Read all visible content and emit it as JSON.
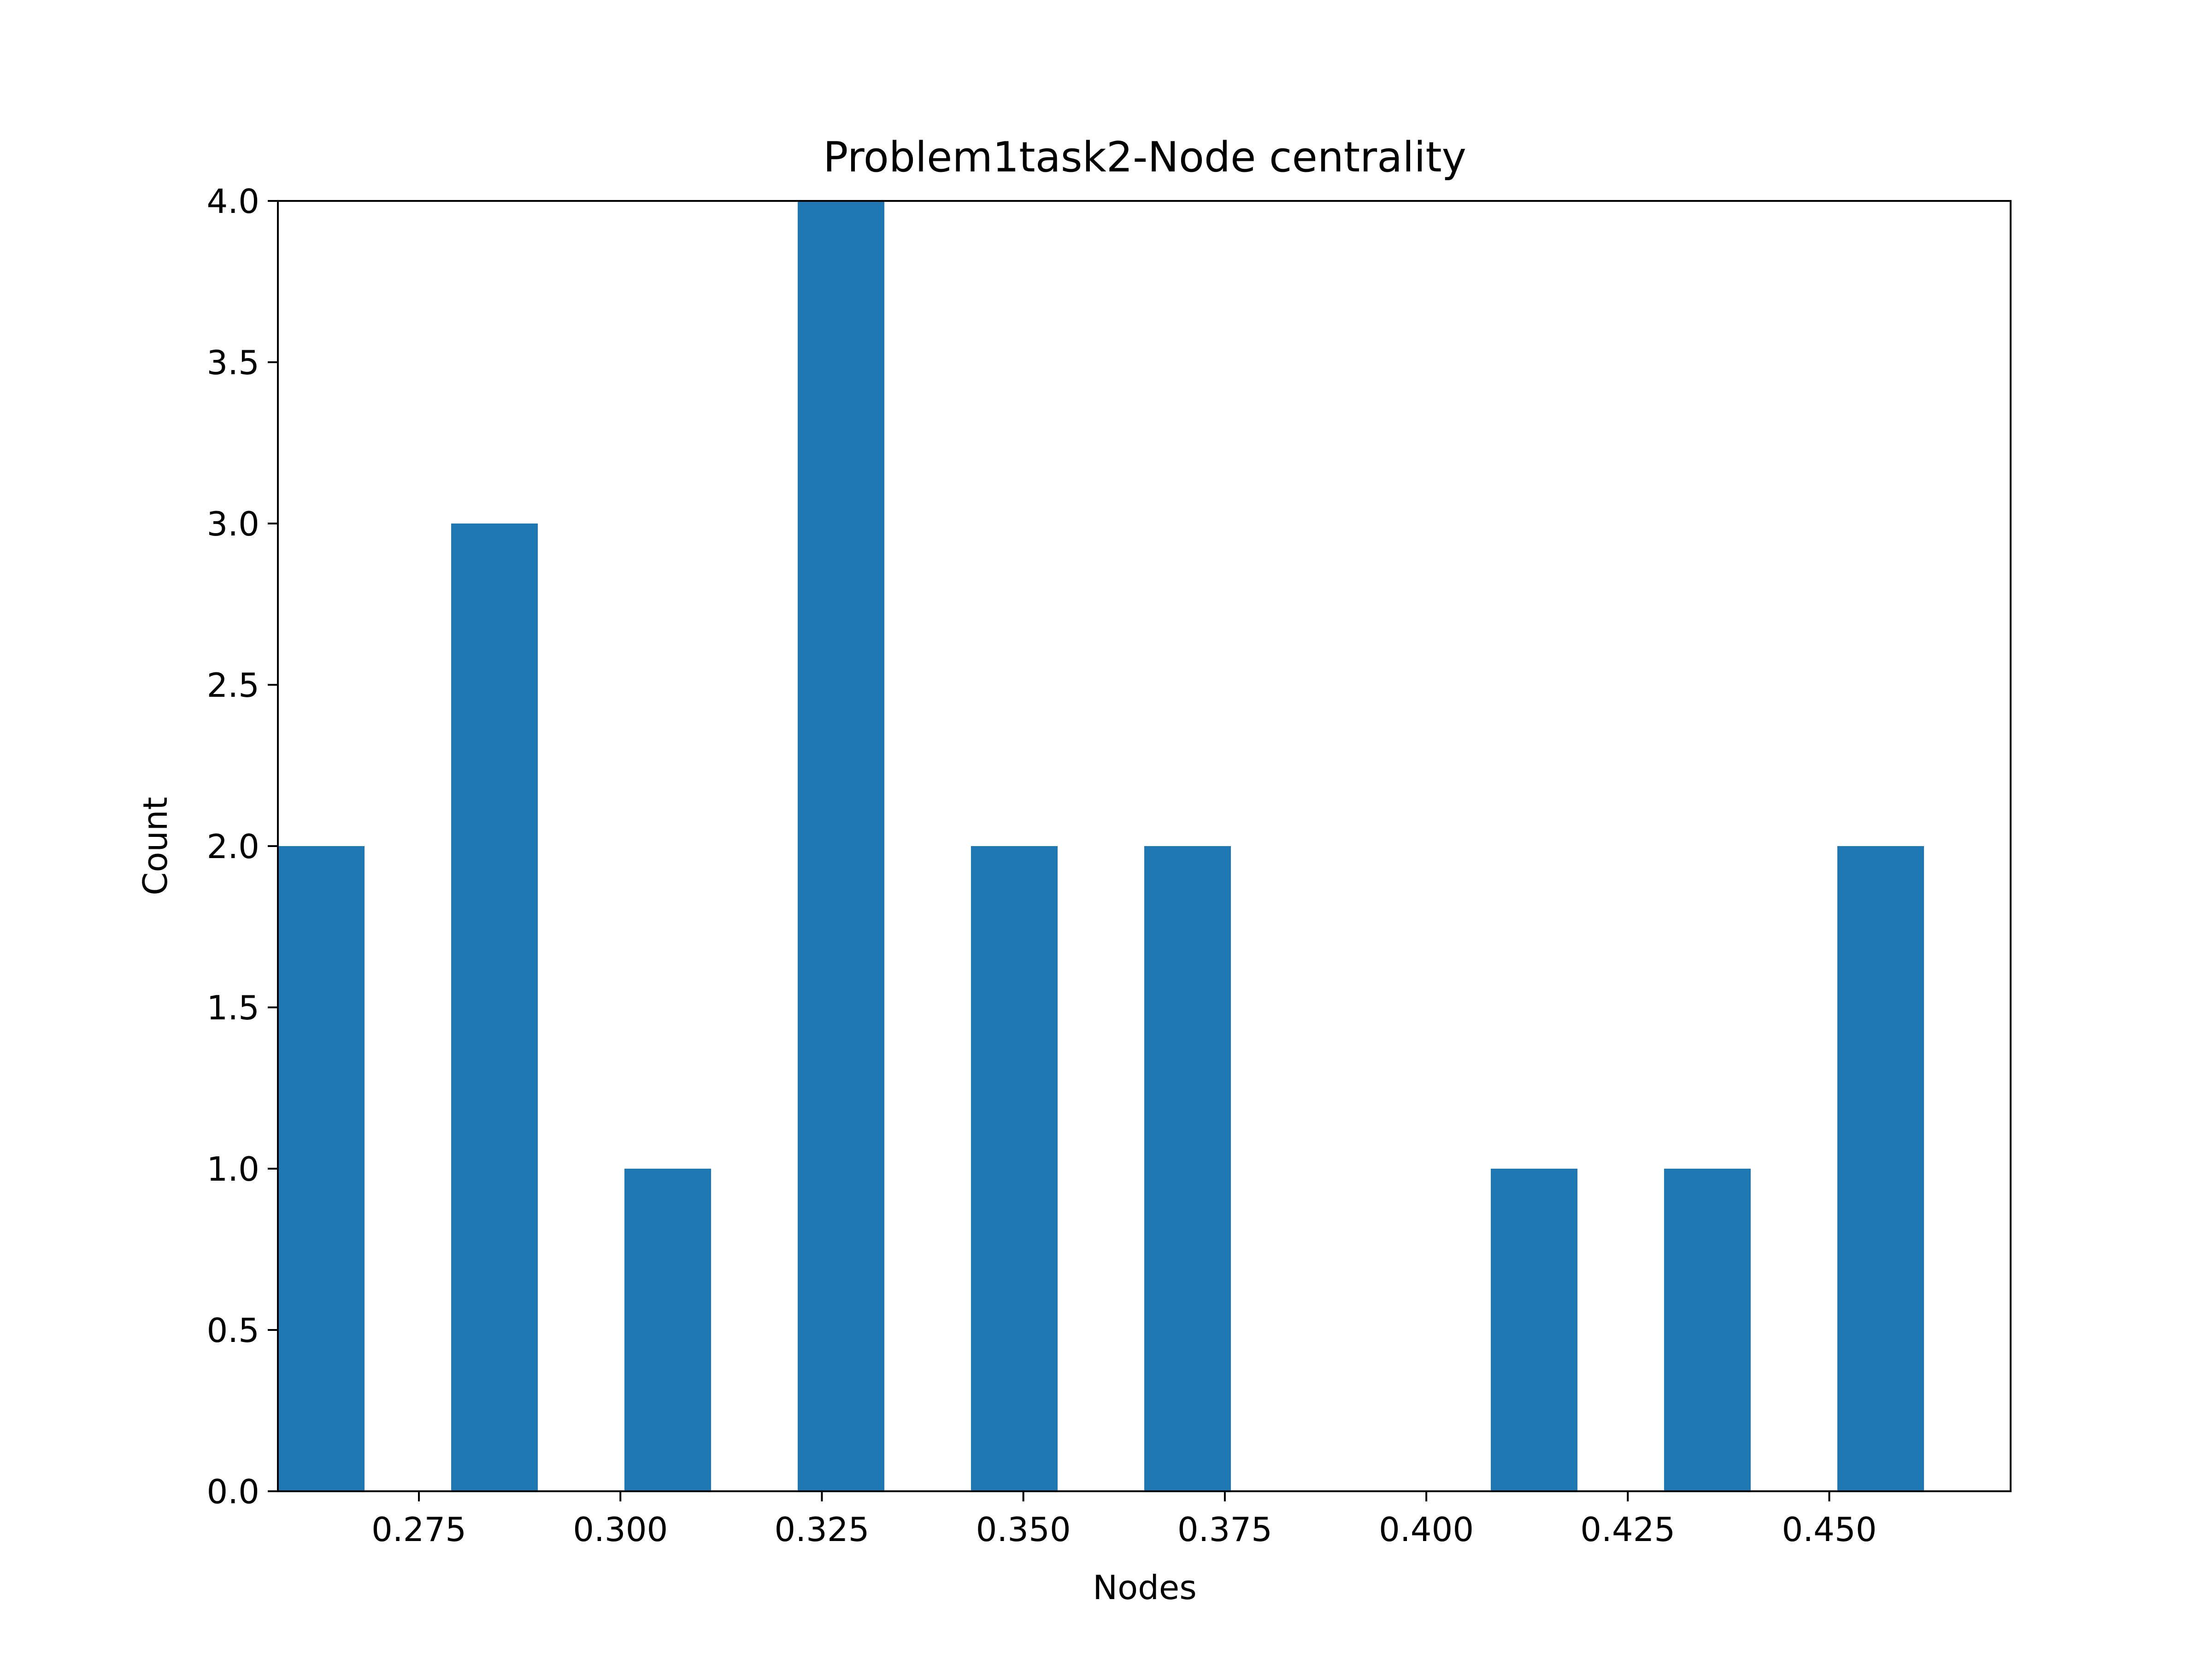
{
  "chart_data": {
    "type": "bar",
    "title": "Problem1task2-Node centrality",
    "xlabel": "Nodes",
    "ylabel": "Count",
    "xlim": [
      0.2575,
      0.4725
    ],
    "ylim": [
      0,
      4
    ],
    "bar_width": 0.01075,
    "x": [
      0.2575,
      0.279,
      0.3005,
      0.322,
      0.3435,
      0.365,
      0.3865,
      0.408,
      0.4295,
      0.451
    ],
    "values": [
      2,
      3,
      1,
      4,
      2,
      2,
      0,
      1,
      1,
      2
    ],
    "xticks": [
      {
        "value": 0.275,
        "label": "0.275"
      },
      {
        "value": 0.3,
        "label": "0.300"
      },
      {
        "value": 0.325,
        "label": "0.325"
      },
      {
        "value": 0.35,
        "label": "0.350"
      },
      {
        "value": 0.375,
        "label": "0.375"
      },
      {
        "value": 0.4,
        "label": "0.400"
      },
      {
        "value": 0.425,
        "label": "0.425"
      },
      {
        "value": 0.45,
        "label": "0.450"
      }
    ],
    "yticks": [
      {
        "value": 0.0,
        "label": "0.0"
      },
      {
        "value": 0.5,
        "label": "0.5"
      },
      {
        "value": 1.0,
        "label": "1.0"
      },
      {
        "value": 1.5,
        "label": "1.5"
      },
      {
        "value": 2.0,
        "label": "2.0"
      },
      {
        "value": 2.5,
        "label": "2.5"
      },
      {
        "value": 3.0,
        "label": "3.0"
      },
      {
        "value": 3.5,
        "label": "3.5"
      },
      {
        "value": 4.0,
        "label": "4.0"
      }
    ],
    "bar_color": "#1f77b4",
    "grid": false,
    "legend": "none"
  }
}
